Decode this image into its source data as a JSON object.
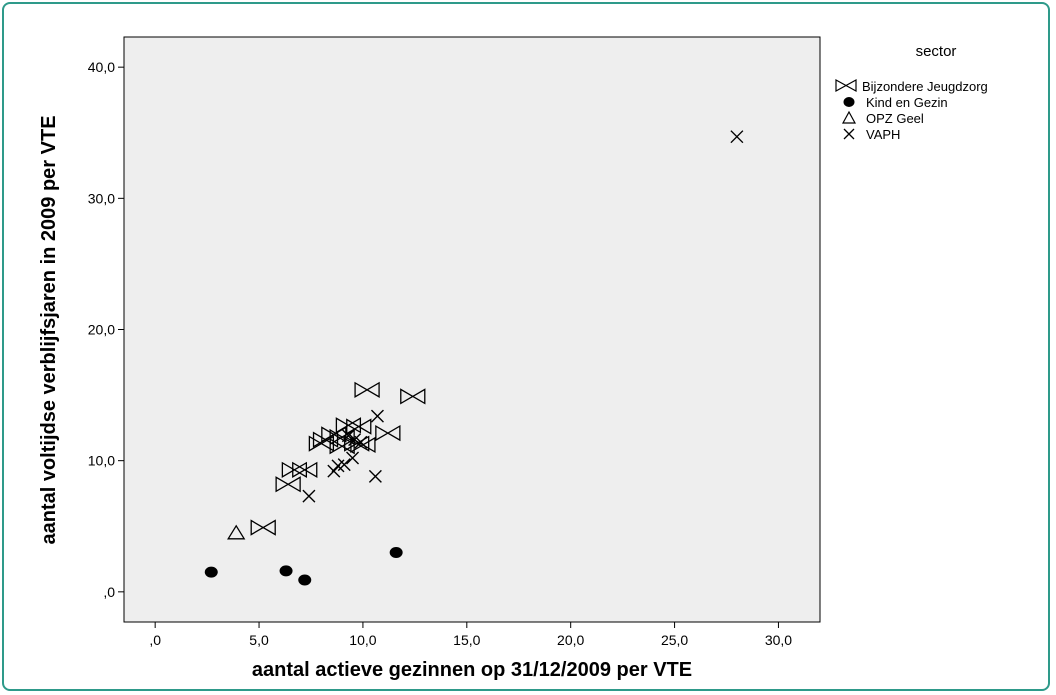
{
  "chart_data": {
    "type": "scatter",
    "xlabel": "aantal actieve gezinnen op 31/12/2009 per VTE",
    "ylabel": "aantal voltijdse verblijfsjaren in 2009 per VTE",
    "xlim": [
      -1.5,
      32
    ],
    "ylim": [
      -2.3,
      42.3
    ],
    "x_ticks": [
      0,
      5,
      10,
      15,
      20,
      25,
      30
    ],
    "x_tick_labels": [
      ",0",
      "5,0",
      "10,0",
      "15,0",
      "20,0",
      "25,0",
      "30,0"
    ],
    "y_ticks": [
      0,
      10,
      20,
      30,
      40
    ],
    "y_tick_labels": [
      ",0",
      "10,0",
      "20,0",
      "30,0",
      "40,0"
    ],
    "grid": false,
    "legend_title": "sector",
    "legend_position": "right",
    "plot_background": "#eeeeee",
    "series": [
      {
        "name": "Bijzondere Jeugdzorg",
        "marker": "bowtie",
        "points": [
          [
            10.2,
            15.4
          ],
          [
            12.4,
            14.9
          ],
          [
            11.2,
            12.1
          ],
          [
            9.3,
            12.7
          ],
          [
            9.8,
            12.6
          ],
          [
            8.6,
            12.0
          ],
          [
            8.2,
            11.6
          ],
          [
            9.0,
            11.8
          ],
          [
            8.0,
            11.3
          ],
          [
            9.7,
            11.3
          ],
          [
            10.0,
            11.2
          ],
          [
            9.0,
            11.1
          ],
          [
            6.7,
            9.3
          ],
          [
            7.2,
            9.3
          ],
          [
            6.4,
            8.2
          ],
          [
            5.2,
            4.9
          ]
        ]
      },
      {
        "name": "Kind en Gezin",
        "marker": "dot",
        "points": [
          [
            2.7,
            1.5
          ],
          [
            6.3,
            1.6
          ],
          [
            7.2,
            0.9
          ],
          [
            11.6,
            3.0
          ]
        ]
      },
      {
        "name": "OPZ Geel",
        "marker": "triangle",
        "points": [
          [
            3.9,
            4.5
          ]
        ]
      },
      {
        "name": "VAPH",
        "marker": "x",
        "points": [
          [
            28.0,
            34.7
          ],
          [
            10.7,
            13.4
          ],
          [
            9.3,
            11.9
          ],
          [
            9.6,
            11.6
          ],
          [
            9.9,
            11.4
          ],
          [
            9.5,
            10.2
          ],
          [
            9.1,
            9.7
          ],
          [
            8.8,
            9.6
          ],
          [
            8.6,
            9.2
          ],
          [
            10.6,
            8.8
          ],
          [
            7.4,
            7.3
          ]
        ]
      }
    ]
  }
}
